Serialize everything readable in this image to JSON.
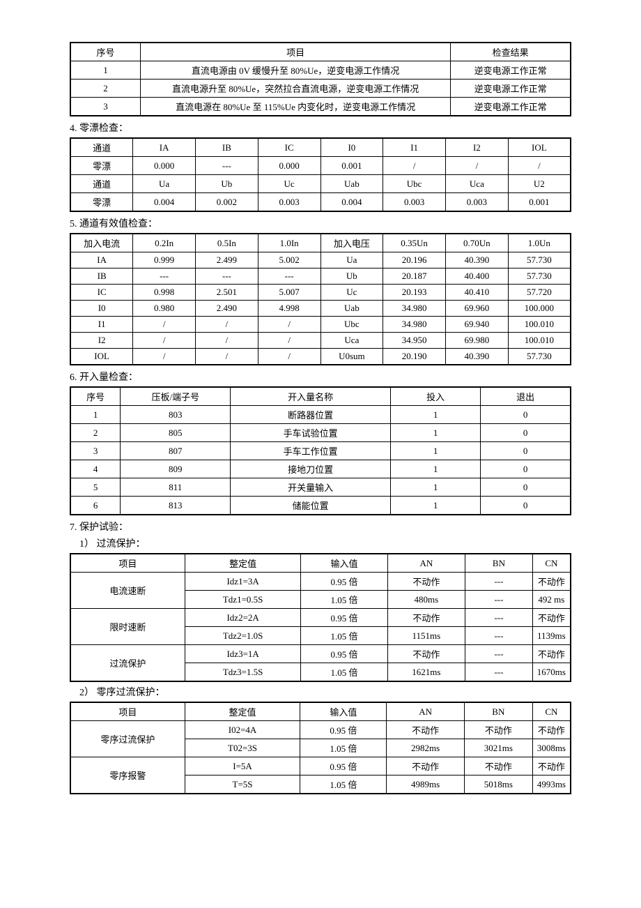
{
  "table1": {
    "headers": [
      "序号",
      "项目",
      "检查结果"
    ],
    "rows": [
      [
        "1",
        "直流电源由 0V 缓慢升至 80%Ue，逆变电源工作情况",
        "逆变电源工作正常"
      ],
      [
        "2",
        "直流电源升至 80%Ue，突然拉合直流电源，逆变电源工作情况",
        "逆变电源工作正常"
      ],
      [
        "3",
        "直流电源在 80%Ue 至 115%Ue 内变化时，逆变电源工作情况",
        "逆变电源工作正常"
      ]
    ]
  },
  "s4_title": "4. 零漂检查：",
  "table2": {
    "rows": [
      [
        "通道",
        "IA",
        "IB",
        "IC",
        "I0",
        "I1",
        "I2",
        "IOL"
      ],
      [
        "零漂",
        "0.000",
        "---",
        "0.000",
        "0.001",
        "/",
        "/",
        "/"
      ],
      [
        "通道",
        "Ua",
        "Ub",
        "Uc",
        "Uab",
        "Ubc",
        "Uca",
        "U2"
      ],
      [
        "零漂",
        "0.004",
        "0.002",
        "0.003",
        "0.004",
        "0.003",
        "0.003",
        "0.001"
      ]
    ]
  },
  "s5_title": "5. 通道有效值检查：",
  "table3": {
    "rows": [
      [
        "加入电流",
        "0.2In",
        "0.5In",
        "1.0In",
        "加入电压",
        "0.35Un",
        "0.70Un",
        "1.0Un"
      ],
      [
        "IA",
        "0.999",
        "2.499",
        "5.002",
        "Ua",
        "20.196",
        "40.390",
        "57.730"
      ],
      [
        "IB",
        "---",
        "---",
        "---",
        "Ub",
        "20.187",
        "40.400",
        "57.730"
      ],
      [
        "IC",
        "0.998",
        "2.501",
        "5.007",
        "Uc",
        "20.193",
        "40.410",
        "57.720"
      ],
      [
        "I0",
        "0.980",
        "2.490",
        "4.998",
        "Uab",
        "34.980",
        "69.960",
        "100.000"
      ],
      [
        "I1",
        "/",
        "/",
        "/",
        "Ubc",
        "34.980",
        "69.940",
        "100.010"
      ],
      [
        "I2",
        "/",
        "/",
        "/",
        "Uca",
        "34.950",
        "69.980",
        "100.010"
      ],
      [
        "IOL",
        "/",
        "/",
        "/",
        "U0sum",
        "20.190",
        "40.390",
        "57.730"
      ]
    ]
  },
  "s6_title": "6. 开入量检查：",
  "table4": {
    "headers": [
      "序号",
      "压板/端子号",
      "开入量名称",
      "投入",
      "退出"
    ],
    "rows": [
      [
        "1",
        "803",
        "断路器位置",
        "1",
        "0"
      ],
      [
        "2",
        "805",
        "手车试验位置",
        "1",
        "0"
      ],
      [
        "3",
        "807",
        "手车工作位置",
        "1",
        "0"
      ],
      [
        "4",
        "809",
        "接地刀位置",
        "1",
        "0"
      ],
      [
        "5",
        "811",
        "开关量输入",
        "1",
        "0"
      ],
      [
        "6",
        "813",
        "储能位置",
        "1",
        "0"
      ]
    ]
  },
  "s7_title": "7. 保护试验：",
  "s7_1_title": "1） 过流保护：",
  "table5": {
    "headers": [
      "项目",
      "整定值",
      "输入值",
      "AN",
      "BN",
      "CN"
    ],
    "groups": [
      {
        "name": "电流速断",
        "set1": "Idz1=3A",
        "set2": "Tdz1=0.5S",
        "in1": "0.95 倍",
        "an1": "不动作",
        "bn1": "---",
        "cn1": "不动作",
        "in2": "1.05 倍",
        "an2": "480ms",
        "bn2": "---",
        "cn2": "492 ms"
      },
      {
        "name": "限时速断",
        "set1": "Idz2=2A",
        "set2": "Tdz2=1.0S",
        "in1": "0.95 倍",
        "an1": "不动作",
        "bn1": "---",
        "cn1": "不动作",
        "in2": "1.05 倍",
        "an2": "1151ms",
        "bn2": "---",
        "cn2": "1139ms"
      },
      {
        "name": "过流保护",
        "set1": "Idz3=1A",
        "set2": "Tdz3=1.5S",
        "in1": "0.95 倍",
        "an1": "不动作",
        "bn1": "---",
        "cn1": "不动作",
        "in2": "1.05 倍",
        "an2": "1621ms",
        "bn2": "---",
        "cn2": "1670ms"
      }
    ]
  },
  "s7_2_title": "2） 零序过流保护：",
  "table6": {
    "headers": [
      "项目",
      "整定值",
      "输入值",
      "AN",
      "BN",
      "CN"
    ],
    "groups": [
      {
        "name": "零序过流保护",
        "set1": "I02=4A",
        "set2": "T02=3S",
        "in1": "0.95 倍",
        "an1": "不动作",
        "bn1": "不动作",
        "cn1": "不动作",
        "in2": "1.05 倍",
        "an2": "2982ms",
        "bn2": "3021ms",
        "cn2": "3008ms"
      },
      {
        "name": "零序报警",
        "set1": "I=5A",
        "set2": "T=5S",
        "in1": "0.95 倍",
        "an1": "不动作",
        "bn1": "不动作",
        "cn1": "不动作",
        "in2": "1.05 倍",
        "an2": "4989ms",
        "bn2": "5018ms",
        "cn2": "4993ms"
      }
    ]
  }
}
